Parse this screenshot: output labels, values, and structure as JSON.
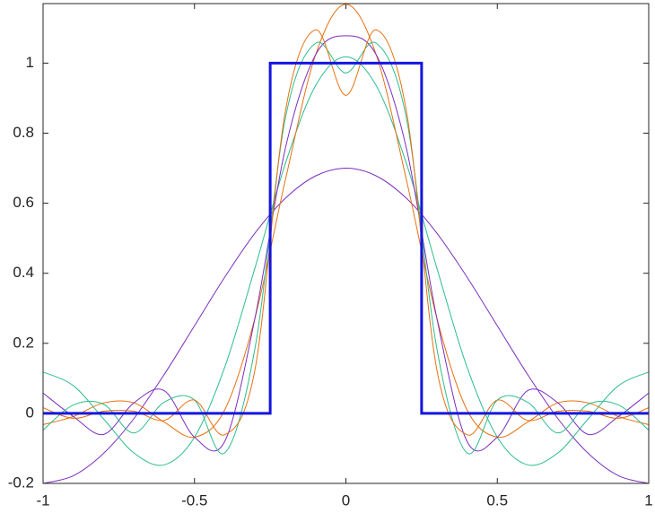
{
  "chart_data": {
    "type": "line",
    "xlim": [
      -1,
      1
    ],
    "xticks": [
      -1,
      -0.5,
      0,
      0.5,
      1
    ],
    "ylim": [
      -0.2,
      1.17
    ],
    "yticks": [
      -0.2,
      0,
      0.2,
      0.4,
      0.6,
      0.8,
      1
    ],
    "grid": false,
    "x": [
      -1,
      -0.9,
      -0.8,
      -0.7,
      -0.6,
      -0.5,
      -0.4,
      -0.3,
      -0.2,
      -0.1,
      0,
      0.1,
      0.2,
      0.3,
      0.4,
      0.5,
      0.6,
      0.7,
      0.8,
      0.9,
      1
    ],
    "series": [
      {
        "color": "#7b2fbe",
        "width": 1,
        "values": [
          -0.2,
          -0.178,
          -0.114,
          -0.015,
          0.111,
          0.25,
          0.389,
          0.515,
          0.614,
          0.678,
          0.7,
          0.678,
          0.614,
          0.515,
          0.389,
          0.25,
          0.111,
          -0.015,
          -0.114,
          -0.178,
          -0.2
        ]
      },
      {
        "color": "#2dbd8c",
        "width": 1,
        "values": [
          0.118,
          0.079,
          -0.016,
          -0.113,
          -0.147,
          -0.068,
          0.132,
          0.416,
          0.713,
          0.936,
          1.018,
          0.936,
          0.713,
          0.416,
          0.132,
          -0.068,
          -0.147,
          -0.113,
          -0.016,
          0.079,
          0.118
        ]
      },
      {
        "color": "#e8700f",
        "width": 1,
        "values": [
          -0.032,
          -0.009,
          0.03,
          0.03,
          -0.025,
          -0.068,
          0.01,
          0.273,
          0.666,
          1.024,
          1.168,
          1.024,
          0.666,
          0.273,
          0.01,
          -0.068,
          -0.025,
          0.03,
          0.03,
          -0.009,
          -0.032
        ]
      },
      {
        "color": "#7b2fbe",
        "width": 1,
        "values": [
          0.058,
          -0.009,
          -0.06,
          0.03,
          0.065,
          -0.068,
          -0.08,
          0.273,
          0.756,
          1.024,
          1.078,
          1.024,
          0.756,
          0.273,
          -0.08,
          -0.068,
          0.065,
          0.03,
          -0.06,
          -0.009,
          0.058
        ]
      },
      {
        "color": "#2dbd8c",
        "width": 1,
        "values": [
          -0.048,
          0.024,
          0.026,
          -0.056,
          0.032,
          0.038,
          -0.113,
          0.187,
          0.842,
          1.057,
          0.972,
          1.057,
          0.842,
          0.187,
          -0.113,
          0.038,
          0.032,
          -0.056,
          0.026,
          0.024,
          -0.048
        ]
      },
      {
        "color": "#e8700f",
        "width": 1,
        "values": [
          0.016,
          -0.014,
          0.006,
          0.006,
          -0.02,
          0.038,
          -0.061,
          0.126,
          0.862,
          1.095,
          0.908,
          1.095,
          0.862,
          0.126,
          -0.061,
          0.038,
          -0.02,
          0.006,
          0.006,
          -0.014,
          0.016
        ]
      },
      {
        "color": "#1515e0",
        "width": 3,
        "x": [
          -1,
          -0.25,
          -0.25,
          0.25,
          0.25,
          1
        ],
        "values": [
          0,
          0,
          1,
          1,
          0,
          0
        ]
      }
    ]
  }
}
